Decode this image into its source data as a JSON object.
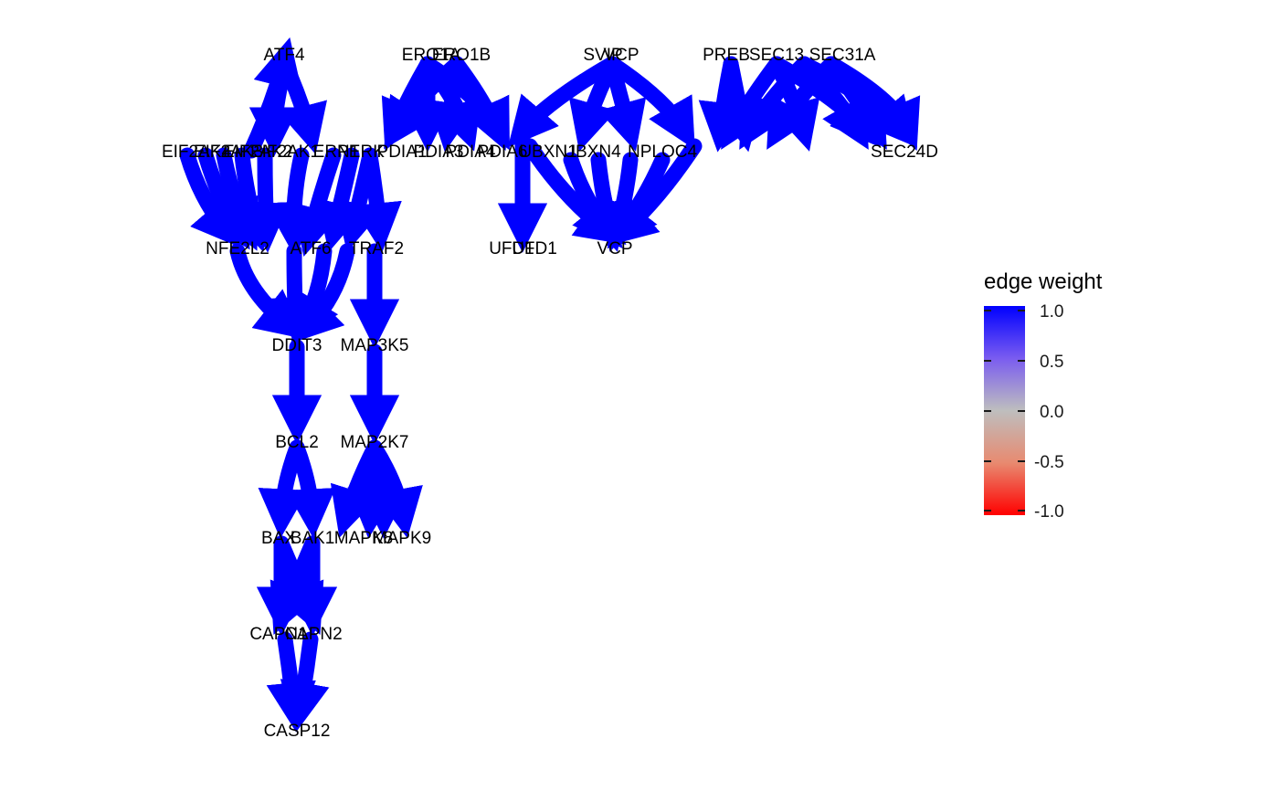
{
  "legend": {
    "title": "edge weight",
    "ticks": [
      "1.0",
      "0.5",
      "0.0",
      "-0.5",
      "-1.0"
    ],
    "tick_values": [
      1.0,
      0.5,
      0.0,
      -0.5,
      -1.0
    ],
    "range": [
      -1.0,
      1.0
    ],
    "colors": {
      "high": "#0000ff",
      "mid": "#bebebe",
      "low": "#ff0000"
    }
  },
  "edge_color": "#0000ff",
  "edge_weight": 1.0,
  "nodes": [
    {
      "id": "ATF4",
      "label": "ATF4"
    },
    {
      "id": "EIF2AK",
      "label": "EIF2AK4"
    },
    {
      "id": "PERK",
      "label": "EIF2AK3"
    },
    {
      "id": "PKR",
      "label": "EIF2AK2"
    },
    {
      "id": "HRI",
      "label": "EIF2AK1"
    },
    {
      "id": "ERN1",
      "label": "ERN1"
    },
    {
      "id": "PERK2",
      "label": "PERK"
    },
    {
      "id": "ERO1",
      "label": "ERO1B"
    },
    {
      "id": "NFE2L2",
      "label": "NFE2L2"
    },
    {
      "id": "ATF6",
      "label": "ATF6"
    },
    {
      "id": "TRAF2",
      "label": "TRAF2"
    },
    {
      "id": "DDIT3",
      "label": "DDIT3"
    },
    {
      "id": "MAP3K5",
      "label": "MAP3K5"
    },
    {
      "id": "BCL2",
      "label": "BCL2"
    },
    {
      "id": "MAP2K7",
      "label": "MAP2K7"
    },
    {
      "id": "BAX",
      "label": "BAX"
    },
    {
      "id": "BAK1",
      "label": "BAK1"
    },
    {
      "id": "MAPK8",
      "label": "MAPK8"
    },
    {
      "id": "MAPK9",
      "label": "MAPK9"
    },
    {
      "id": "CAPN1",
      "label": "CAPN1"
    },
    {
      "id": "CAPN2",
      "label": "CAPN2"
    },
    {
      "id": "CASP12",
      "label": "CASP12"
    },
    {
      "id": "ERO1A",
      "label": "ERO1A"
    },
    {
      "id": "ERO1B",
      "label": "ERO1B"
    },
    {
      "id": "PDIA1",
      "label": "PDIA1"
    },
    {
      "id": "PDIA3",
      "label": "PDIA3"
    },
    {
      "id": "PDIA4",
      "label": "PDIA4"
    },
    {
      "id": "PDIA6",
      "label": "PDIA6"
    },
    {
      "id": "SVIP",
      "label": "SVIP"
    },
    {
      "id": "VCP1",
      "label": "VCP"
    },
    {
      "id": "UBXN",
      "label": "UBXN1"
    },
    {
      "id": "UBXN4",
      "label": "UBXN4"
    },
    {
      "id": "NPLOC4",
      "label": "NPLOC4"
    },
    {
      "id": "UFD1",
      "label": "UFD1"
    },
    {
      "id": "VCP",
      "label": "VCP"
    },
    {
      "id": "UFD1L",
      "label": "UFD1"
    },
    {
      "id": "PREB",
      "label": "PREB"
    },
    {
      "id": "SEC13",
      "label": "SEC13"
    },
    {
      "id": "SEC31",
      "label": "SEC31A"
    },
    {
      "id": "SEC24",
      "label": "SEC24D"
    }
  ]
}
